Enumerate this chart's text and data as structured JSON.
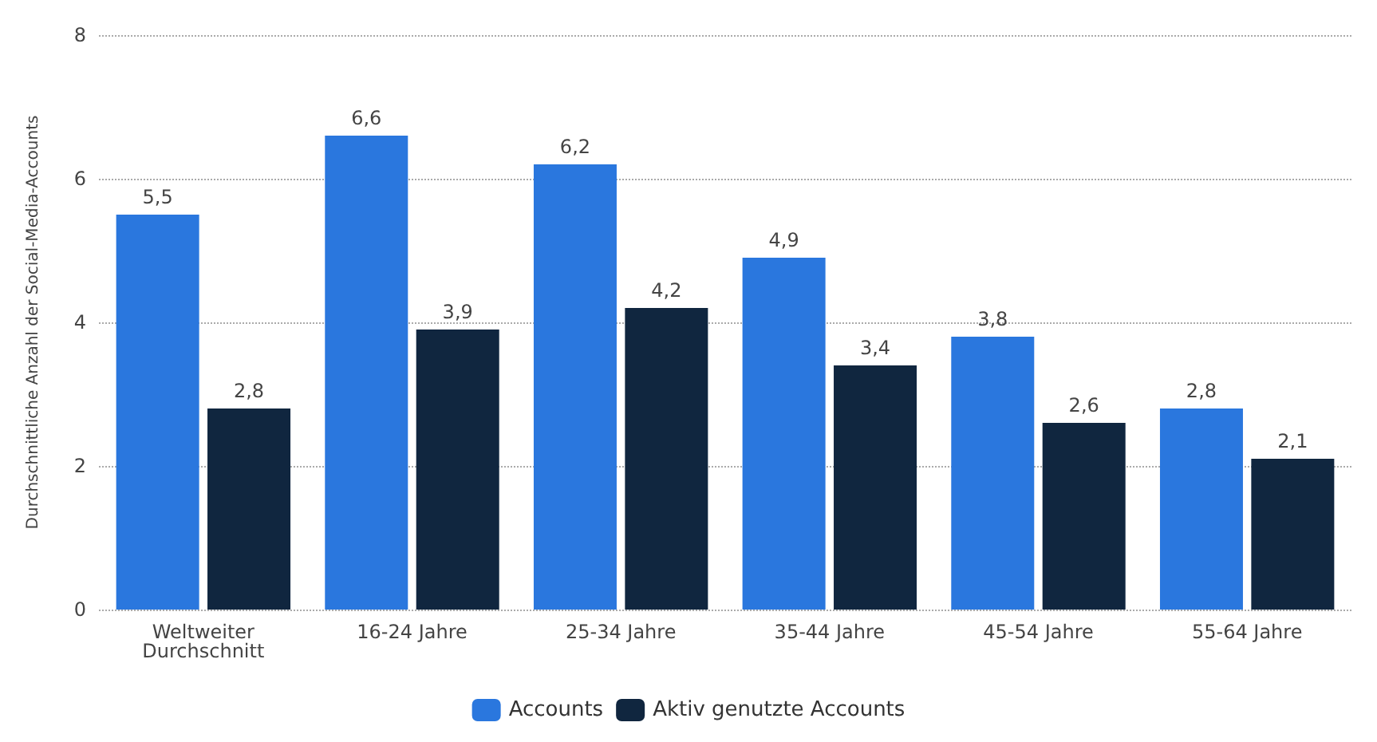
{
  "chart_data": {
    "type": "bar",
    "ylabel": "Durchschnittliche Anzahl der Social-Media-Accounts",
    "categories": [
      "Weltweiter\nDurchschnitt",
      "16-24 Jahre",
      "25-34 Jahre",
      "35-44 Jahre",
      "45-54 Jahre",
      "55-64 Jahre"
    ],
    "series": [
      {
        "name": "Accounts",
        "color": "#2a77de",
        "values": [
          5.5,
          6.6,
          6.2,
          4.9,
          3.8,
          2.8
        ],
        "value_labels": [
          "5,5",
          "6,6",
          "6,2",
          "4,9",
          "3,8",
          "2,8"
        ]
      },
      {
        "name": "Aktiv genutzte Accounts",
        "color": "#10263f",
        "values": [
          2.8,
          3.9,
          4.2,
          3.4,
          2.6,
          2.1
        ],
        "value_labels": [
          "2,8",
          "3,9",
          "4,2",
          "3,4",
          "2,6",
          "2,1"
        ]
      }
    ],
    "ylim": [
      0,
      8
    ],
    "yticks": [
      0,
      2,
      4,
      6,
      8
    ],
    "grid": "y",
    "legend": "bottom"
  }
}
